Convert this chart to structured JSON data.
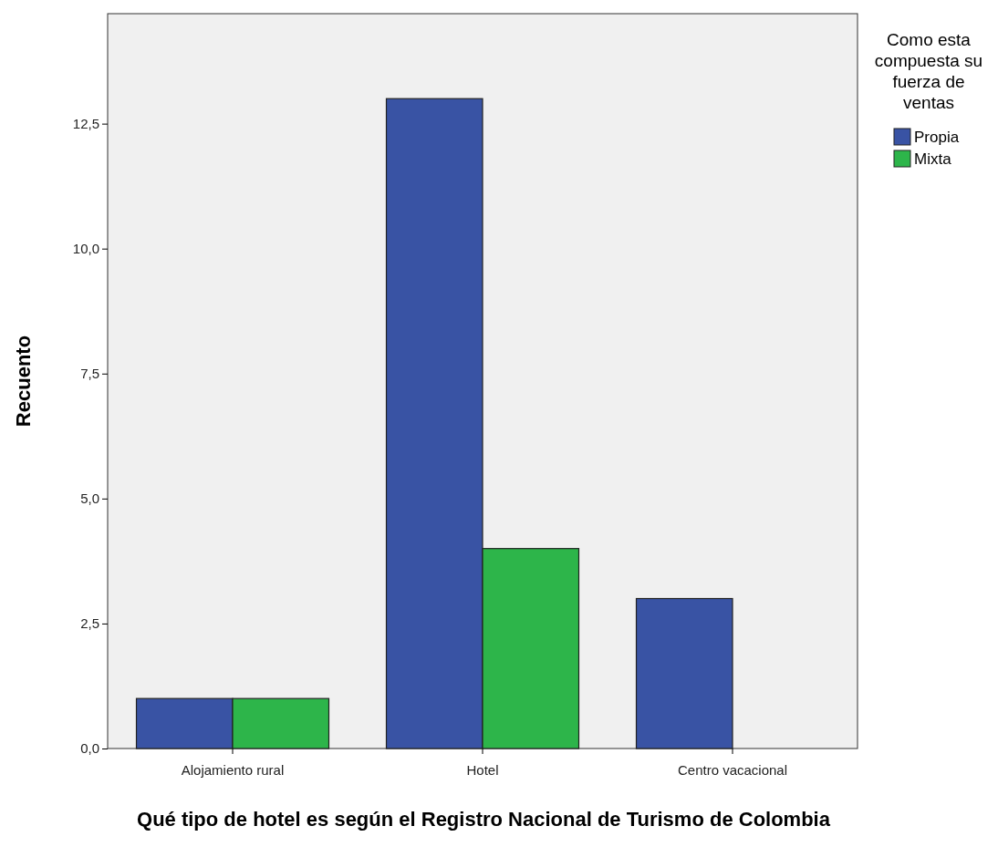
{
  "chart_data": {
    "type": "bar",
    "xlabel": "Qué tipo de hotel es según el Registro Nacional de Turismo de Colombia",
    "ylabel": "Recuento",
    "legend_title": "Como esta compuesta su fuerza de ventas",
    "categories": [
      "Alojamiento rural",
      "Hotel",
      "Centro vacacional"
    ],
    "series": [
      {
        "name": "Propia",
        "color": "#3953a4",
        "values": [
          1,
          13,
          3
        ]
      },
      {
        "name": "Mixta",
        "color": "#2db54a",
        "values": [
          1,
          4,
          null
        ]
      }
    ],
    "ylim": [
      0,
      14.7
    ],
    "yticks": [
      {
        "value": 0,
        "label": "0,0"
      },
      {
        "value": 2.5,
        "label": "2,5"
      },
      {
        "value": 5,
        "label": "5,0"
      },
      {
        "value": 7.5,
        "label": "7,5"
      },
      {
        "value": 10,
        "label": "10,0"
      },
      {
        "value": 12.5,
        "label": "12,5"
      }
    ],
    "grid": false,
    "legend": "top right"
  }
}
